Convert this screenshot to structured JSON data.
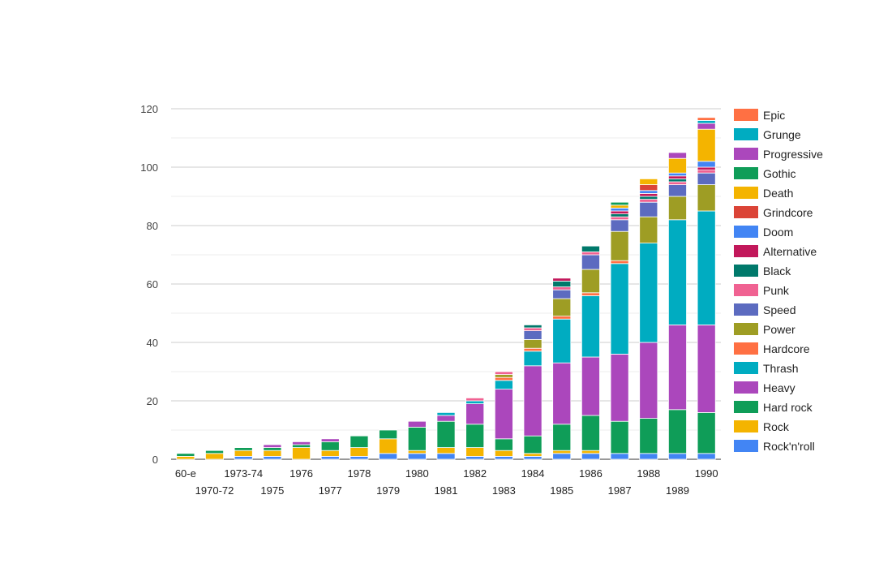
{
  "chart_data": {
    "type": "bar",
    "stacked": true,
    "categories": [
      "60-e",
      "1970-72",
      "1973-74",
      "1975",
      "1976",
      "1977",
      "1978",
      "1979",
      "1980",
      "1981",
      "1982",
      "1983",
      "1984",
      "1985",
      "1986",
      "1987",
      "1988",
      "1989",
      "1990"
    ],
    "ylim": [
      0,
      120
    ],
    "yticks": [
      0,
      20,
      40,
      60,
      80,
      100,
      120
    ],
    "grid": true,
    "legend_position": "right",
    "series": [
      {
        "name": "Rock'n'roll",
        "color": "#4285f4",
        "values": [
          0,
          0,
          1,
          1,
          0,
          1,
          1,
          2,
          2,
          2,
          1,
          1,
          1,
          2,
          2,
          2,
          2,
          2,
          2
        ]
      },
      {
        "name": "Rock",
        "color": "#f4b400",
        "values": [
          1,
          2,
          2,
          2,
          4,
          2,
          3,
          5,
          1,
          2,
          3,
          2,
          1,
          1,
          1,
          0,
          0,
          0,
          0
        ]
      },
      {
        "name": "Hard rock",
        "color": "#0f9d58",
        "values": [
          1,
          1,
          1,
          1,
          1,
          3,
          4,
          3,
          8,
          9,
          8,
          4,
          6,
          9,
          12,
          11,
          12,
          15,
          14
        ]
      },
      {
        "name": "Heavy",
        "color": "#ab47bc",
        "values": [
          0,
          0,
          0,
          1,
          1,
          1,
          0,
          0,
          2,
          2,
          7,
          17,
          24,
          21,
          20,
          23,
          26,
          29,
          30
        ]
      },
      {
        "name": "Thrash",
        "color": "#00acc1",
        "values": [
          0,
          0,
          0,
          0,
          0,
          0,
          0,
          0,
          0,
          1,
          1,
          3,
          5,
          15,
          21,
          31,
          34,
          36,
          39
        ]
      },
      {
        "name": "Hardcore",
        "color": "#ff7043",
        "values": [
          0,
          0,
          0,
          0,
          0,
          0,
          0,
          0,
          0,
          0,
          0,
          1,
          1,
          1,
          1,
          1,
          0,
          0,
          0
        ]
      },
      {
        "name": "Power",
        "color": "#9e9d24",
        "values": [
          0,
          0,
          0,
          0,
          0,
          0,
          0,
          0,
          0,
          0,
          0,
          1,
          3,
          6,
          8,
          10,
          9,
          8,
          9
        ]
      },
      {
        "name": "Speed",
        "color": "#5c6bc0",
        "values": [
          0,
          0,
          0,
          0,
          0,
          0,
          0,
          0,
          0,
          0,
          0,
          0,
          3,
          3,
          5,
          4,
          5,
          4,
          4
        ]
      },
      {
        "name": "Punk",
        "color": "#f06292",
        "values": [
          0,
          0,
          0,
          0,
          0,
          0,
          0,
          0,
          0,
          0,
          1,
          1,
          1,
          1,
          1,
          1,
          1,
          1,
          1
        ]
      },
      {
        "name": "Black",
        "color": "#00796b",
        "values": [
          0,
          0,
          0,
          0,
          0,
          0,
          0,
          0,
          0,
          0,
          0,
          0,
          1,
          2,
          2,
          1,
          1,
          1,
          0
        ]
      },
      {
        "name": "Alternative",
        "color": "#c2185b",
        "values": [
          0,
          0,
          0,
          0,
          0,
          0,
          0,
          0,
          0,
          0,
          0,
          0,
          0,
          1,
          0,
          1,
          1,
          1,
          1
        ]
      },
      {
        "name": "Doom",
        "color": "#4285f4",
        "values": [
          0,
          0,
          0,
          0,
          0,
          0,
          0,
          0,
          0,
          0,
          0,
          0,
          0,
          0,
          0,
          1,
          1,
          1,
          2
        ]
      },
      {
        "name": "Grindcore",
        "color": "#db4437",
        "values": [
          0,
          0,
          0,
          0,
          0,
          0,
          0,
          0,
          0,
          0,
          0,
          0,
          0,
          0,
          0,
          0,
          2,
          0,
          0
        ]
      },
      {
        "name": "Death",
        "color": "#f4b400",
        "values": [
          0,
          0,
          0,
          0,
          0,
          0,
          0,
          0,
          0,
          0,
          0,
          0,
          0,
          0,
          0,
          1,
          2,
          5,
          11
        ]
      },
      {
        "name": "Gothic",
        "color": "#0f9d58",
        "values": [
          0,
          0,
          0,
          0,
          0,
          0,
          0,
          0,
          0,
          0,
          0,
          0,
          0,
          0,
          0,
          1,
          0,
          0,
          0
        ]
      },
      {
        "name": "Progressive",
        "color": "#ab47bc",
        "values": [
          0,
          0,
          0,
          0,
          0,
          0,
          0,
          0,
          0,
          0,
          0,
          0,
          0,
          0,
          0,
          0,
          0,
          2,
          2
        ]
      },
      {
        "name": "Grunge",
        "color": "#00acc1",
        "values": [
          0,
          0,
          0,
          0,
          0,
          0,
          0,
          0,
          0,
          0,
          0,
          0,
          0,
          0,
          0,
          0,
          0,
          0,
          1
        ]
      },
      {
        "name": "Epic",
        "color": "#ff7043",
        "values": [
          0,
          0,
          0,
          0,
          0,
          0,
          0,
          0,
          0,
          0,
          0,
          0,
          0,
          0,
          0,
          0,
          0,
          0,
          1
        ]
      }
    ]
  }
}
